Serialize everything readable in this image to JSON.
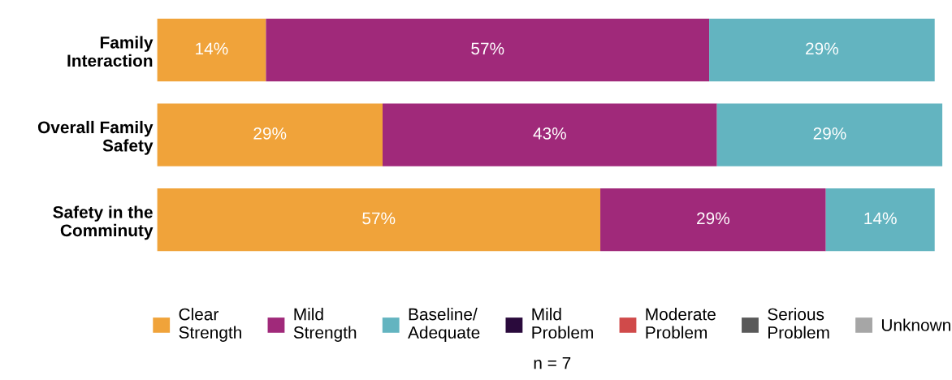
{
  "chart_data": {
    "type": "bar",
    "orientation": "horizontal",
    "stacked": true,
    "categories": [
      "Family\nInteraction",
      "Overall Family\nSafety",
      "Safety in the\nComminuty"
    ],
    "xlim": [
      0,
      101
    ],
    "tick_labels": "y",
    "grid": false,
    "legend": "bottom",
    "series": [
      {
        "name": "Clear\nStrength",
        "color": "#f0a33a",
        "values": [
          14,
          29,
          57
        ],
        "value_labels": [
          "14%",
          "29%",
          "57%"
        ]
      },
      {
        "name": "Mild\nStrength",
        "color": "#a0297a",
        "values": [
          57,
          43,
          29
        ],
        "value_labels": [
          "57%",
          "43%",
          "29%"
        ]
      },
      {
        "name": "Baseline/\nAdequate",
        "color": "#63b4c0",
        "values": [
          29,
          29,
          14
        ],
        "value_labels": [
          "29%",
          "29%",
          "14%"
        ]
      },
      {
        "name": "Mild\nProblem",
        "color": "#2a0a3c",
        "values": [
          0,
          0,
          0
        ],
        "value_labels": [
          null,
          null,
          null
        ]
      },
      {
        "name": "Moderate\nProblem",
        "color": "#d04a4a",
        "values": [
          0,
          0,
          0
        ],
        "value_labels": [
          null,
          null,
          null
        ]
      },
      {
        "name": "Serious\nProblem",
        "color": "#595959",
        "values": [
          0,
          0,
          0
        ],
        "value_labels": [
          null,
          null,
          null
        ]
      },
      {
        "name": "Unknown",
        "color": "#a6a6a6",
        "values": [
          0,
          0,
          0
        ],
        "value_labels": [
          null,
          null,
          null
        ]
      }
    ],
    "annotations": [
      "n = 7"
    ]
  }
}
